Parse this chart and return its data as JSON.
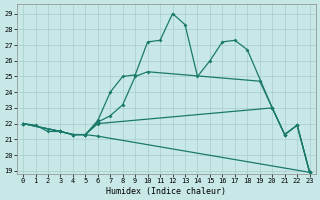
{
  "xlabel": "Humidex (Indice chaleur)",
  "bg_color": "#c8e8e8",
  "grid_color": "#a8cece",
  "line_color": "#1a7a6a",
  "xlim": [
    -0.5,
    23.5
  ],
  "ylim": [
    18.8,
    29.6
  ],
  "yticks": [
    19,
    20,
    21,
    22,
    23,
    24,
    25,
    26,
    27,
    28,
    29
  ],
  "xticks": [
    0,
    1,
    2,
    3,
    4,
    5,
    6,
    7,
    8,
    9,
    10,
    11,
    12,
    13,
    14,
    15,
    16,
    17,
    18,
    19,
    20,
    21,
    22,
    23
  ],
  "line1_x": [
    0,
    1,
    2,
    3,
    4,
    5,
    6,
    7,
    8,
    9,
    10,
    11,
    12,
    13,
    14,
    15,
    16,
    17,
    18,
    20,
    21,
    22,
    23
  ],
  "line1_y": [
    22,
    21.9,
    21.5,
    21.5,
    21.3,
    21.3,
    22.2,
    24.0,
    25.0,
    25.1,
    27.2,
    27.3,
    29.0,
    28.3,
    25.0,
    26.0,
    27.2,
    27.3,
    26.7,
    23.0,
    21.3,
    21.9,
    18.9
  ],
  "line2_x": [
    0,
    3,
    4,
    5,
    6,
    7,
    8,
    9,
    10,
    19,
    20,
    21,
    22,
    23
  ],
  "line2_y": [
    22,
    21.5,
    21.3,
    21.3,
    22.1,
    22.5,
    23.2,
    25.0,
    25.3,
    24.7,
    23.0,
    21.3,
    21.9,
    18.9
  ],
  "line3_x": [
    0,
    3,
    4,
    5,
    6,
    20,
    21,
    22,
    23
  ],
  "line3_y": [
    22,
    21.5,
    21.3,
    21.3,
    22.0,
    23.0,
    21.3,
    21.9,
    18.9
  ],
  "line4_x": [
    0,
    3,
    4,
    5,
    6,
    23
  ],
  "line4_y": [
    22,
    21.5,
    21.3,
    21.3,
    21.2,
    18.9
  ]
}
